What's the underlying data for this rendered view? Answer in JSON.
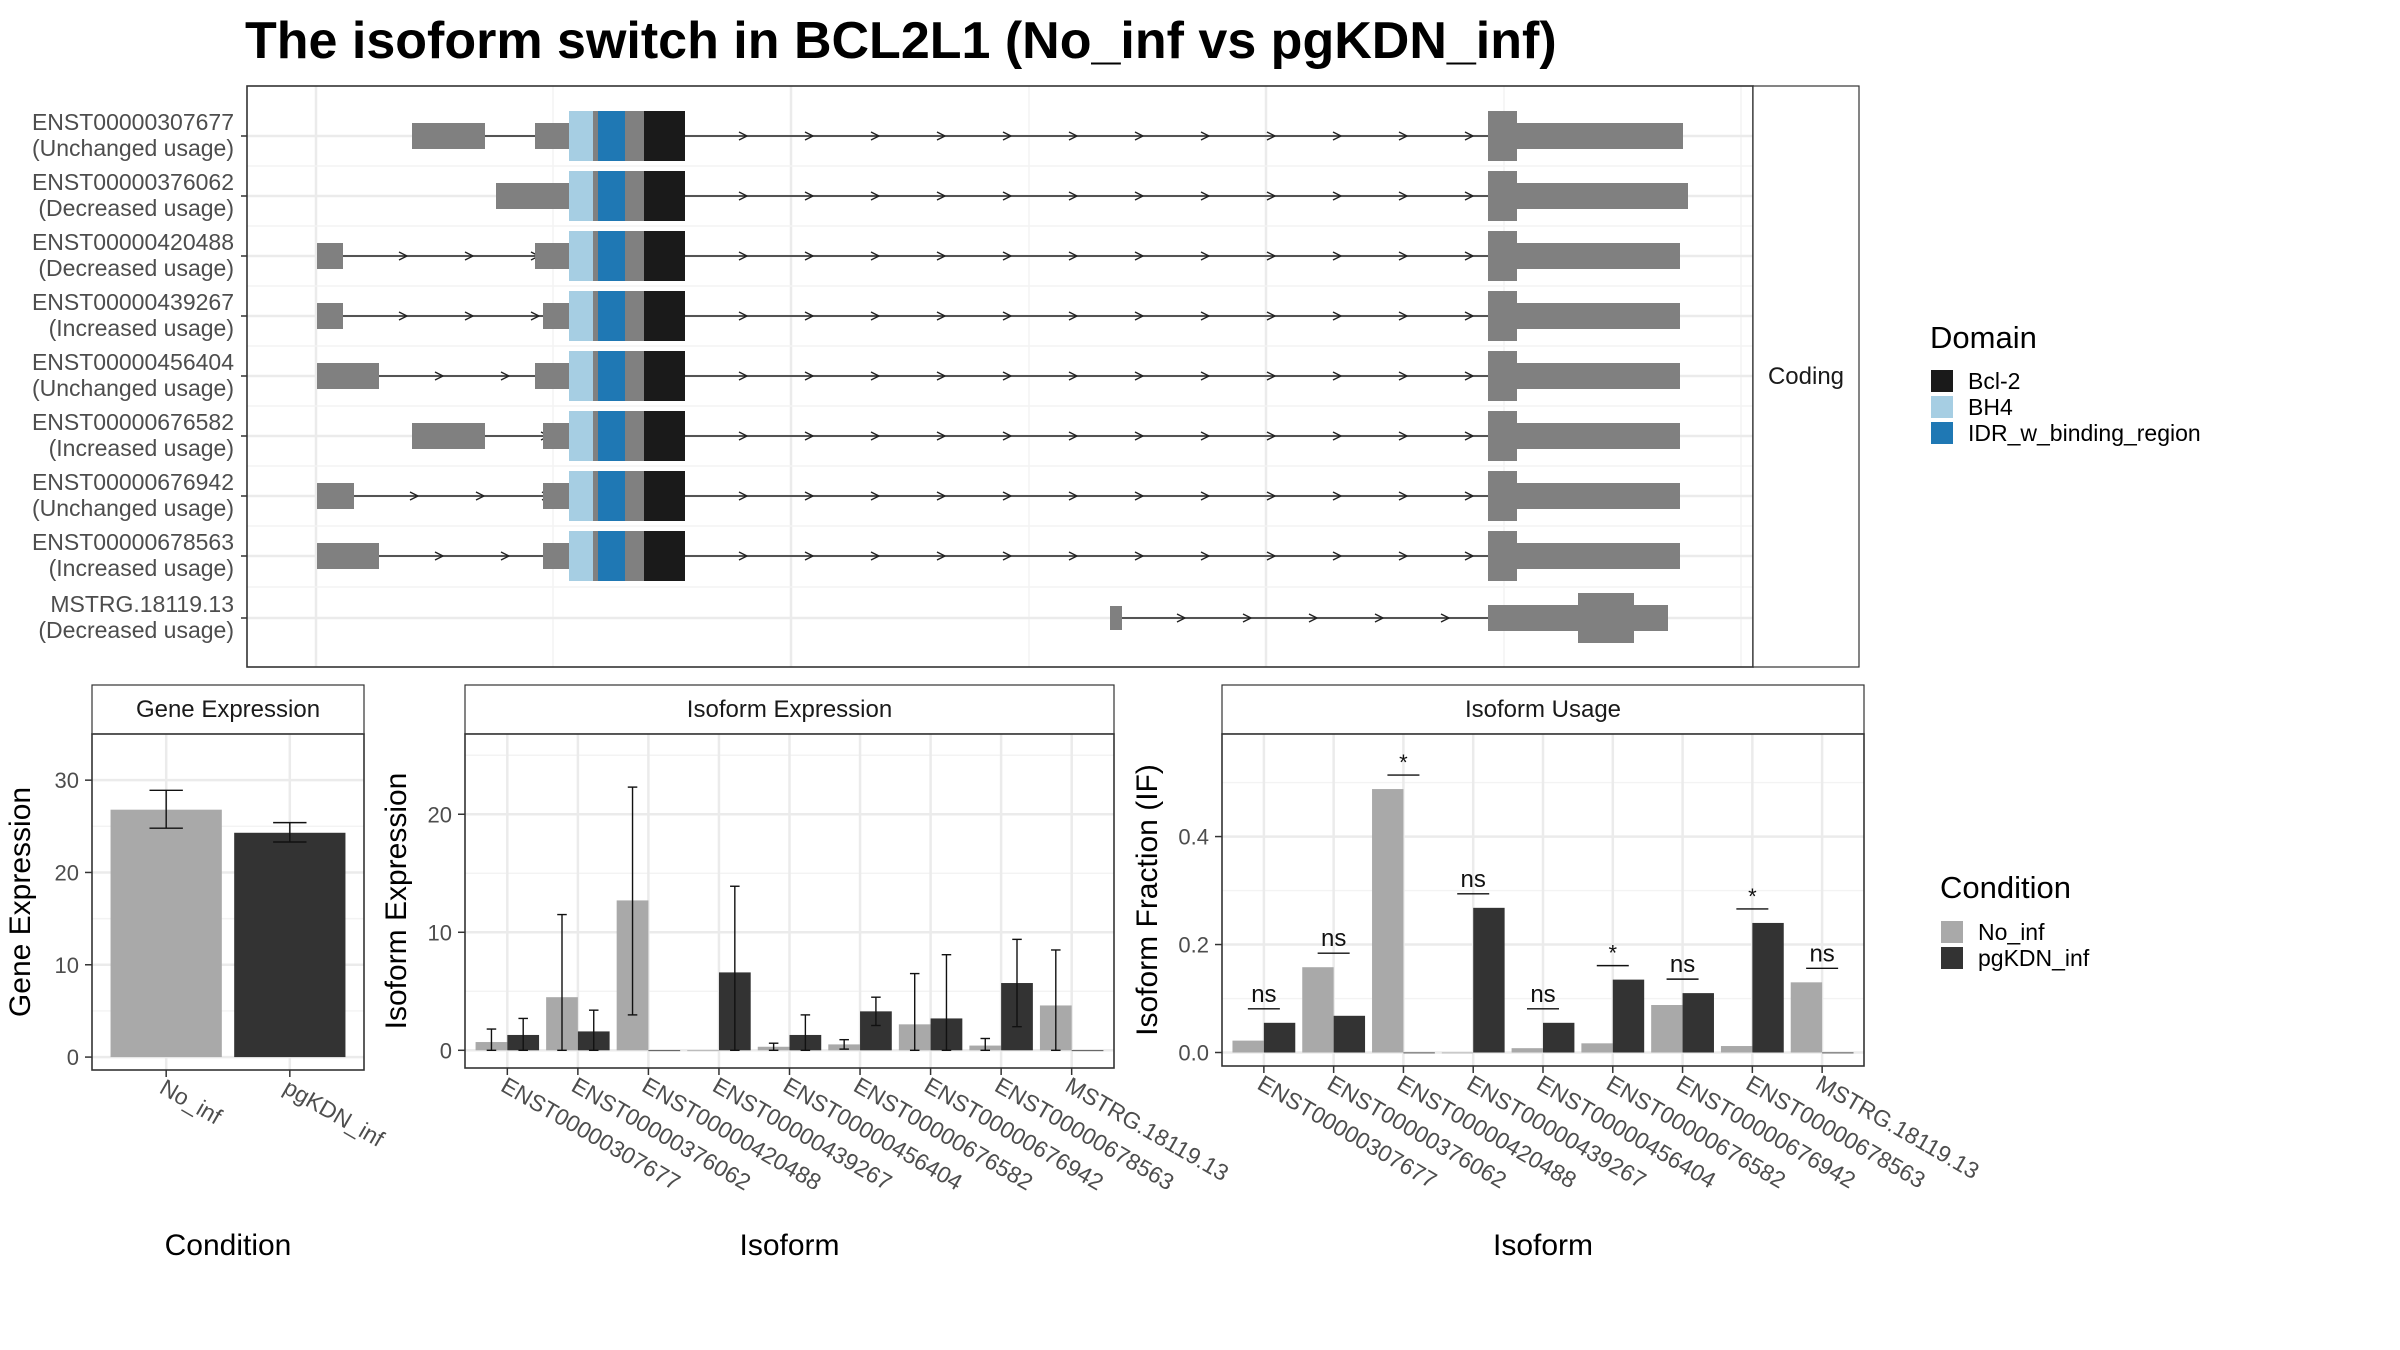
{
  "title": "The isoform switch in BCL2L1 (No_inf vs pgKDN_inf)",
  "colors": {
    "bcl2": "#1a1a1a",
    "bh4": "#a6cee3",
    "idr": "#1f78b4",
    "exon": "#808080",
    "no_inf": "#a9a9a9",
    "pgkdn_inf": "#333333"
  },
  "structure": {
    "strip_label": "Coding",
    "legend_title": "Domain",
    "legend_items": [
      {
        "label": "Bcl-2",
        "color": "#1a1a1a"
      },
      {
        "label": "BH4",
        "color": "#a6cee3"
      },
      {
        "label": "IDR_w_binding_region",
        "color": "#1f78b4"
      }
    ],
    "transcripts": [
      {
        "id": "ENST00000307677",
        "usage": "(Unchanged usage)"
      },
      {
        "id": "ENST00000376062",
        "usage": "(Decreased usage)"
      },
      {
        "id": "ENST00000420488",
        "usage": "(Decreased usage)"
      },
      {
        "id": "ENST00000439267",
        "usage": "(Increased usage)"
      },
      {
        "id": "ENST00000456404",
        "usage": "(Unchanged usage)"
      },
      {
        "id": "ENST00000676582",
        "usage": "(Increased usage)"
      },
      {
        "id": "ENST00000676942",
        "usage": "(Unchanged usage)"
      },
      {
        "id": "ENST00000678563",
        "usage": "(Increased usage)"
      },
      {
        "id": "MSTRG.18119.13",
        "usage": "(Decreased usage)"
      }
    ]
  },
  "legend_condition": {
    "title": "Condition",
    "items": [
      {
        "label": "No_inf",
        "color": "#a9a9a9"
      },
      {
        "label": "pgKDN_inf",
        "color": "#333333"
      }
    ]
  },
  "chart_data": [
    {
      "type": "bar",
      "title": "Gene Expression",
      "xlabel": "Condition",
      "ylabel": "Gene Expression",
      "categories": [
        "No_inf",
        "pgKDN_inf"
      ],
      "values": [
        26.8,
        24.3
      ],
      "err_low": [
        24.8,
        23.3
      ],
      "err_high": [
        28.9,
        25.4
      ],
      "ylim": [
        -1.4,
        35
      ],
      "yticks": [
        "0",
        "10",
        "20",
        "30"
      ]
    },
    {
      "type": "bar",
      "title": "Isoform Expression",
      "xlabel": "Isoform",
      "ylabel": "Isoform Expression",
      "categories": [
        "ENST00000307677",
        "ENST00000376062",
        "ENST00000420488",
        "ENST00000439267",
        "ENST00000456404",
        "ENST00000676582",
        "ENST00000676942",
        "ENST00000678563",
        "MSTRG.18119.13"
      ],
      "series": [
        {
          "name": "No_inf",
          "values": [
            0.7,
            4.5,
            12.7,
            0.0,
            0.3,
            0.5,
            2.2,
            0.4,
            3.8
          ],
          "err_low": [
            0.0,
            0.0,
            3.0,
            0.0,
            0.0,
            0.1,
            0.0,
            0.0,
            0.0
          ],
          "err_high": [
            1.8,
            11.5,
            22.3,
            0.0,
            0.6,
            0.9,
            6.5,
            1.0,
            8.5
          ]
        },
        {
          "name": "pgKDN_inf",
          "values": [
            1.3,
            1.6,
            0.0,
            6.6,
            1.3,
            3.3,
            2.7,
            5.7,
            0.0
          ],
          "err_low": [
            0.0,
            0.0,
            0.0,
            0.0,
            0.0,
            2.1,
            0.0,
            2.0,
            0.0
          ],
          "err_high": [
            2.7,
            3.4,
            0.0,
            13.9,
            3.0,
            4.5,
            8.1,
            9.4,
            0.0
          ]
        }
      ],
      "ylim": [
        -1.5,
        26.8
      ],
      "yticks": [
        "0",
        "10",
        "20"
      ]
    },
    {
      "type": "bar",
      "title": "Isoform Usage",
      "xlabel": "Isoform",
      "ylabel": "Isoform Fraction (IF)",
      "categories": [
        "ENST00000307677",
        "ENST00000376062",
        "ENST00000420488",
        "ENST00000439267",
        "ENST00000456404",
        "ENST00000676582",
        "ENST00000676942",
        "ENST00000678563",
        "MSTRG.18119.13"
      ],
      "series": [
        {
          "name": "No_inf",
          "values": [
            0.022,
            0.158,
            0.488,
            0.0,
            0.008,
            0.017,
            0.088,
            0.012,
            0.13
          ]
        },
        {
          "name": "pgKDN_inf",
          "values": [
            0.055,
            0.068,
            0.0,
            0.268,
            0.055,
            0.135,
            0.11,
            0.24,
            0.0
          ]
        }
      ],
      "significance": [
        "ns",
        "ns",
        "*",
        "ns",
        "ns",
        "*",
        "ns",
        "*",
        "ns"
      ],
      "ylim": [
        -0.025,
        0.59
      ],
      "yticks": [
        "0.0",
        "0.2",
        "0.4"
      ]
    }
  ]
}
